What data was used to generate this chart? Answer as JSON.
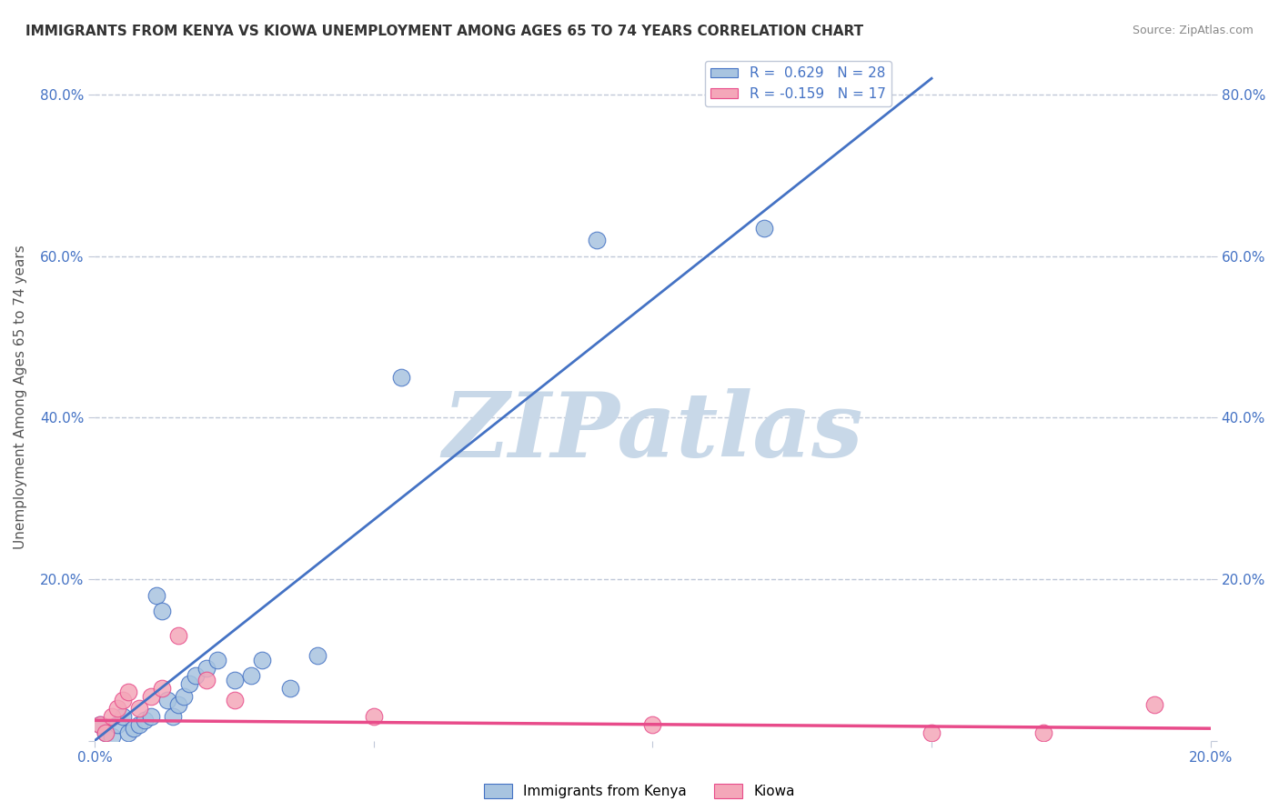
{
  "title": "IMMIGRANTS FROM KENYA VS KIOWA UNEMPLOYMENT AMONG AGES 65 TO 74 YEARS CORRELATION CHART",
  "source": "Source: ZipAtlas.com",
  "xlabel": "",
  "ylabel": "Unemployment Among Ages 65 to 74 years",
  "xlim": [
    0.0,
    0.2
  ],
  "ylim": [
    0.0,
    0.85
  ],
  "xticks": [
    0.0,
    0.05,
    0.1,
    0.15,
    0.2
  ],
  "yticks": [
    0.0,
    0.2,
    0.4,
    0.6,
    0.8
  ],
  "xticklabels": [
    "0.0%",
    "",
    "",
    "",
    "20.0%"
  ],
  "yticklabels": [
    "",
    "20.0%",
    "40.0%",
    "60.0%",
    "80.0%"
  ],
  "legend_labels": [
    "Immigrants from Kenya",
    "Kiowa"
  ],
  "legend_r1": "R =  0.629",
  "legend_n1": "N = 28",
  "legend_r2": "R = -0.159",
  "legend_n2": "N = 17",
  "blue_color": "#a8c4e0",
  "pink_color": "#f4a7b9",
  "blue_line_color": "#4472c4",
  "pink_line_color": "#e84b8a",
  "trend_line_color_blue": "#4472c4",
  "trend_line_color_pink": "#e84b8a",
  "watermark": "ZIPatlas",
  "watermark_color": "#c8d8e8",
  "background_color": "#ffffff",
  "grid_color": "#c0c8d8",
  "kenya_x": [
    0.001,
    0.002,
    0.003,
    0.004,
    0.005,
    0.006,
    0.007,
    0.008,
    0.009,
    0.01,
    0.011,
    0.012,
    0.013,
    0.014,
    0.015,
    0.016,
    0.017,
    0.018,
    0.02,
    0.022,
    0.025,
    0.028,
    0.03,
    0.035,
    0.04,
    0.055,
    0.09,
    0.12
  ],
  "kenya_y": [
    0.02,
    0.01,
    0.005,
    0.02,
    0.03,
    0.01,
    0.015,
    0.02,
    0.025,
    0.03,
    0.18,
    0.16,
    0.05,
    0.03,
    0.045,
    0.055,
    0.07,
    0.08,
    0.09,
    0.1,
    0.075,
    0.08,
    0.1,
    0.065,
    0.105,
    0.45,
    0.62,
    0.635
  ],
  "kiowa_x": [
    0.001,
    0.002,
    0.003,
    0.004,
    0.005,
    0.006,
    0.008,
    0.01,
    0.012,
    0.015,
    0.02,
    0.025,
    0.05,
    0.1,
    0.15,
    0.17,
    0.19
  ],
  "kiowa_y": [
    0.02,
    0.01,
    0.03,
    0.04,
    0.05,
    0.06,
    0.04,
    0.055,
    0.065,
    0.13,
    0.075,
    0.05,
    0.03,
    0.02,
    0.01,
    0.01,
    0.045
  ],
  "blue_trendline_x": [
    0.0,
    0.15
  ],
  "blue_trendline_y": [
    0.0,
    0.82
  ],
  "pink_trendline_x": [
    0.0,
    0.2
  ],
  "pink_trendline_y": [
    0.025,
    0.015
  ]
}
